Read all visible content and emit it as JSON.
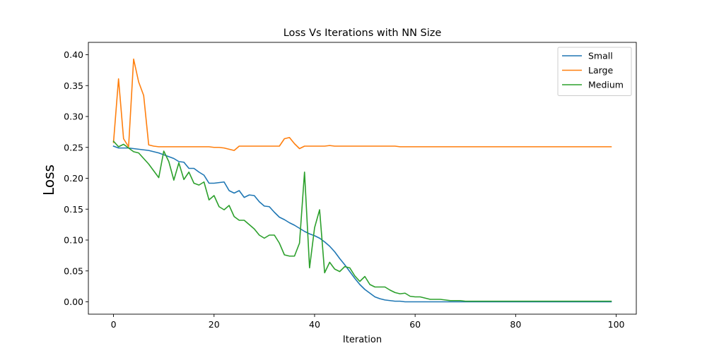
{
  "chart_data": {
    "type": "line",
    "title": "Loss Vs Iterations with NN Size",
    "xlabel": "Iteration",
    "ylabel": "Loss",
    "xlim": [
      -5,
      104
    ],
    "ylim": [
      -0.02,
      0.42
    ],
    "xticks": [
      0,
      20,
      40,
      60,
      80,
      100
    ],
    "xtick_labels": [
      "0",
      "20",
      "40",
      "60",
      "80",
      "100"
    ],
    "yticks": [
      0.0,
      0.05,
      0.1,
      0.15,
      0.2,
      0.25,
      0.3,
      0.35,
      0.4
    ],
    "ytick_labels": [
      "0.00",
      "0.05",
      "0.10",
      "0.15",
      "0.20",
      "0.25",
      "0.30",
      "0.35",
      "0.40"
    ],
    "grid": false,
    "legend_position": "top-right",
    "series": [
      {
        "name": "Small",
        "color": "#1f77b4",
        "values": [
          0.252,
          0.249,
          0.249,
          0.249,
          0.248,
          0.247,
          0.246,
          0.245,
          0.243,
          0.241,
          0.238,
          0.235,
          0.232,
          0.227,
          0.226,
          0.216,
          0.216,
          0.21,
          0.205,
          0.192,
          0.192,
          0.193,
          0.194,
          0.18,
          0.176,
          0.18,
          0.169,
          0.173,
          0.172,
          0.162,
          0.155,
          0.154,
          0.145,
          0.137,
          0.133,
          0.128,
          0.124,
          0.119,
          0.114,
          0.11,
          0.107,
          0.103,
          0.097,
          0.09,
          0.081,
          0.07,
          0.06,
          0.049,
          0.038,
          0.028,
          0.02,
          0.014,
          0.008,
          0.005,
          0.003,
          0.002,
          0.001,
          0.001,
          0.0,
          0.0,
          0.0,
          0.0,
          0.0,
          0.0,
          0.0,
          0.0,
          0.0,
          0.0,
          0.0,
          0.0,
          0.0,
          0.0,
          0.0,
          0.0,
          0.0,
          0.0,
          0.0,
          0.0,
          0.0,
          0.0,
          0.0,
          0.0,
          0.0,
          0.0,
          0.0,
          0.0,
          0.0,
          0.0,
          0.0,
          0.0,
          0.0,
          0.0,
          0.0,
          0.0,
          0.0,
          0.0,
          0.0,
          0.0,
          0.0,
          0.0
        ]
      },
      {
        "name": "Large",
        "color": "#ff7f0e",
        "values": [
          0.258,
          0.361,
          0.264,
          0.251,
          0.393,
          0.356,
          0.334,
          0.254,
          0.252,
          0.251,
          0.251,
          0.251,
          0.251,
          0.251,
          0.251,
          0.251,
          0.251,
          0.251,
          0.251,
          0.251,
          0.25,
          0.25,
          0.249,
          0.247,
          0.245,
          0.252,
          0.252,
          0.252,
          0.252,
          0.252,
          0.252,
          0.252,
          0.252,
          0.252,
          0.264,
          0.266,
          0.256,
          0.248,
          0.252,
          0.252,
          0.252,
          0.252,
          0.252,
          0.253,
          0.252,
          0.252,
          0.252,
          0.252,
          0.252,
          0.252,
          0.252,
          0.252,
          0.252,
          0.252,
          0.252,
          0.252,
          0.252,
          0.251,
          0.251,
          0.251,
          0.251,
          0.251,
          0.251,
          0.251,
          0.251,
          0.251,
          0.251,
          0.251,
          0.251,
          0.251,
          0.251,
          0.251,
          0.251,
          0.251,
          0.251,
          0.251,
          0.251,
          0.251,
          0.251,
          0.251,
          0.251,
          0.251,
          0.251,
          0.251,
          0.251,
          0.251,
          0.251,
          0.251,
          0.251,
          0.251,
          0.251,
          0.251,
          0.251,
          0.251,
          0.251,
          0.251,
          0.251,
          0.251,
          0.251,
          0.251
        ]
      },
      {
        "name": "Medium",
        "color": "#2ca02c",
        "values": [
          0.26,
          0.251,
          0.255,
          0.249,
          0.243,
          0.241,
          0.232,
          0.223,
          0.212,
          0.201,
          0.244,
          0.227,
          0.197,
          0.225,
          0.198,
          0.21,
          0.192,
          0.189,
          0.194,
          0.165,
          0.172,
          0.154,
          0.149,
          0.156,
          0.138,
          0.132,
          0.132,
          0.125,
          0.118,
          0.108,
          0.103,
          0.108,
          0.108,
          0.095,
          0.076,
          0.074,
          0.074,
          0.095,
          0.21,
          0.055,
          0.12,
          0.149,
          0.047,
          0.064,
          0.053,
          0.049,
          0.057,
          0.055,
          0.042,
          0.033,
          0.041,
          0.028,
          0.024,
          0.024,
          0.024,
          0.019,
          0.015,
          0.013,
          0.014,
          0.009,
          0.008,
          0.008,
          0.006,
          0.004,
          0.004,
          0.004,
          0.003,
          0.002,
          0.002,
          0.002,
          0.001,
          0.001,
          0.001,
          0.001,
          0.001,
          0.001,
          0.001,
          0.001,
          0.001,
          0.001,
          0.001,
          0.001,
          0.001,
          0.001,
          0.001,
          0.001,
          0.001,
          0.001,
          0.001,
          0.001,
          0.001,
          0.001,
          0.001,
          0.001,
          0.001,
          0.001,
          0.001,
          0.001,
          0.001,
          0.001
        ]
      }
    ]
  }
}
